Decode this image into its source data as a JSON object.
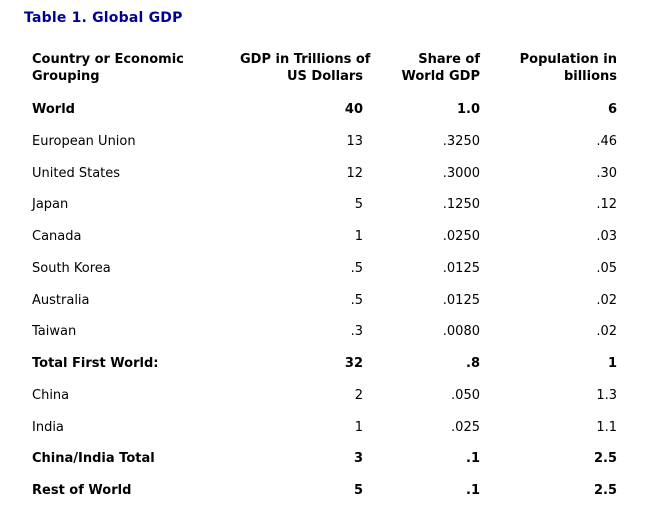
{
  "title": "Table 1. Global GDP",
  "colors": {
    "title_text": "#000099",
    "body_text": "#000000",
    "background": "#ffffff"
  },
  "table": {
    "columns": [
      {
        "label": "Country or Economic Grouping",
        "line1": "Country or Economic",
        "line2": "Grouping",
        "align": "left"
      },
      {
        "label": "GDP in Trillions of US Dollars",
        "line1": "GDP in Trillions of",
        "line2": "US Dollars",
        "align": "right"
      },
      {
        "label": "Share of World GDP",
        "line1": "Share of",
        "line2": "World GDP",
        "align": "right"
      },
      {
        "label": "Population in billions",
        "line1": "Population in",
        "line2": "billions",
        "align": "right"
      }
    ],
    "rows": [
      {
        "name": "World",
        "gdp": "40",
        "share": "1.0",
        "population": "6",
        "bold": true
      },
      {
        "name": "European Union",
        "gdp": "13",
        "share": ".3250",
        "population": ".46",
        "bold": false
      },
      {
        "name": "United States",
        "gdp": "12",
        "share": ".3000",
        "population": ".30",
        "bold": false
      },
      {
        "name": "Japan",
        "gdp": "5",
        "share": ".1250",
        "population": ".12",
        "bold": false
      },
      {
        "name": "Canada",
        "gdp": "1",
        "share": ".0250",
        "population": ".03",
        "bold": false
      },
      {
        "name": "South Korea",
        "gdp": ".5",
        "share": ".0125",
        "population": ".05",
        "bold": false
      },
      {
        "name": "Australia",
        "gdp": ".5",
        "share": ".0125",
        "population": ".02",
        "bold": false
      },
      {
        "name": "Taiwan",
        "gdp": ".3",
        "share": ".0080",
        "population": ".02",
        "bold": false
      },
      {
        "name": "Total First World:",
        "gdp": "32",
        "share": ".8",
        "population": "1",
        "bold": true
      },
      {
        "name": "China",
        "gdp": "2",
        "share": ".050",
        "population": "1.3",
        "bold": false
      },
      {
        "name": "India",
        "gdp": "1",
        "share": ".025",
        "population": "1.1",
        "bold": false
      },
      {
        "name": "China/India Total",
        "gdp": "3",
        "share": ".1",
        "population": "2.5",
        "bold": true
      },
      {
        "name": "Rest of World",
        "gdp": "5",
        "share": ".1",
        "population": "2.5",
        "bold": true
      }
    ]
  }
}
